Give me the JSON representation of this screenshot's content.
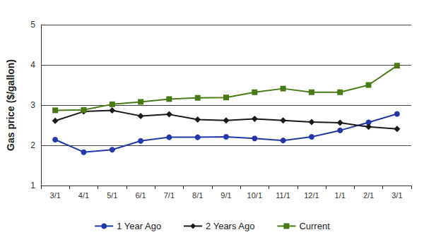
{
  "chart_data": {
    "type": "line",
    "y_label": "Gas price ($/gallon)",
    "categories": [
      "3/1",
      "4/1",
      "5/1",
      "6/1",
      "7/1",
      "8/1",
      "9/1",
      "10/1",
      "11/1",
      "12/1",
      "1/1",
      "2/1",
      "3/1"
    ],
    "series": [
      {
        "name": "1 Year Ago",
        "color": "#2337a6",
        "marker": "circle",
        "values": [
          2.14,
          1.83,
          1.89,
          2.11,
          2.2,
          2.2,
          2.21,
          2.17,
          2.12,
          2.21,
          2.37,
          2.57,
          2.78
        ]
      },
      {
        "name": "2 Years Ago",
        "color": "#1a1a1a",
        "marker": "diamond",
        "values": [
          2.61,
          2.84,
          2.87,
          2.73,
          2.77,
          2.64,
          2.62,
          2.66,
          2.62,
          2.58,
          2.56,
          2.46,
          2.41
        ]
      },
      {
        "name": "Current",
        "color": "#4a7a16",
        "marker": "square",
        "values": [
          2.87,
          2.88,
          3.02,
          3.08,
          3.15,
          3.18,
          3.19,
          3.32,
          3.41,
          3.32,
          3.32,
          3.5,
          3.98
        ]
      }
    ],
    "ylim": [
      1,
      5
    ],
    "yticks": [
      1,
      2,
      3,
      4,
      5
    ],
    "grid": true,
    "legend": "bottom"
  }
}
